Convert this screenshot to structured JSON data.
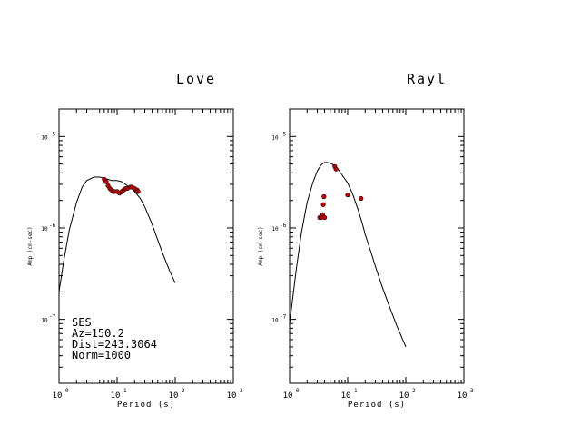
{
  "chart_data": [
    {
      "type": "line",
      "title": "Love",
      "xlabel": "Period (s)",
      "ylabel": "Amp (cm-sec)",
      "x_scale": "log",
      "y_scale": "log",
      "xlim": [
        1,
        1000
      ],
      "ylim": [
        2e-08,
        2e-05
      ],
      "x_ticks": [
        {
          "value": 1,
          "base": "10",
          "exp": "0"
        },
        {
          "value": 10,
          "base": "10",
          "exp": "1"
        },
        {
          "value": 100,
          "base": "10",
          "exp": "2"
        },
        {
          "value": 1000,
          "base": "10",
          "exp": "3"
        }
      ],
      "y_ticks": [
        {
          "value": 1e-05,
          "base": "10",
          "exp": "-5"
        },
        {
          "value": 1e-06,
          "base": "10",
          "exp": "-6"
        },
        {
          "value": 1e-07,
          "base": "10",
          "exp": "-7"
        }
      ],
      "model": {
        "x": [
          1,
          1.2,
          1.5,
          2,
          2.5,
          3,
          4,
          5,
          6,
          7,
          8,
          10,
          12,
          15,
          18,
          20,
          25,
          30,
          40,
          50,
          60,
          70,
          80,
          100
        ],
        "y": [
          2e-07,
          4.3e-07,
          9.5e-07,
          1.9e-06,
          2.8e-06,
          3.3e-06,
          3.6e-06,
          3.6e-06,
          3.5e-06,
          3.4e-06,
          3.3e-06,
          3.3e-06,
          3.2e-06,
          2.9e-06,
          2.7e-06,
          2.5e-06,
          2.1e-06,
          1.7e-06,
          1.1e-06,
          7.4e-07,
          5.4e-07,
          4.2e-07,
          3.4e-07,
          2.5e-07
        ]
      },
      "observed": {
        "x": [
          6,
          6.5,
          7,
          7.5,
          8,
          8.5,
          9,
          10,
          11,
          12,
          13,
          14,
          15,
          17,
          18,
          20,
          22,
          23
        ],
        "y": [
          3.4e-06,
          3.2e-06,
          2.9e-06,
          2.7e-06,
          2.6e-06,
          2.5e-06,
          2.5e-06,
          2.5e-06,
          2.4e-06,
          2.5e-06,
          2.6e-06,
          2.7e-06,
          2.7e-06,
          2.8e-06,
          2.8e-06,
          2.7e-06,
          2.6e-06,
          2.5e-06
        ]
      },
      "annotation": [
        "SES",
        "Az=150.2",
        "Dist=243.3064",
        "Norm=1000"
      ]
    },
    {
      "type": "line",
      "title": "Rayl",
      "xlabel": "Period (s)",
      "ylabel": "Amp (cm-sec)",
      "x_scale": "log",
      "y_scale": "log",
      "xlim": [
        1,
        1000
      ],
      "ylim": [
        2e-08,
        2e-05
      ],
      "x_ticks": [
        {
          "value": 1,
          "base": "10",
          "exp": "0"
        },
        {
          "value": 10,
          "base": "10",
          "exp": "1"
        },
        {
          "value": 100,
          "base": "10",
          "exp": "2"
        },
        {
          "value": 1000,
          "base": "10",
          "exp": "3"
        }
      ],
      "y_ticks": [
        {
          "value": 1e-05,
          "base": "10",
          "exp": "-5"
        },
        {
          "value": 1e-06,
          "base": "10",
          "exp": "-6"
        },
        {
          "value": 1e-07,
          "base": "10",
          "exp": "-7"
        }
      ],
      "model": {
        "x": [
          1,
          1.3,
          1.6,
          2,
          2.5,
          3,
          3.5,
          4,
          4.5,
          5,
          6,
          7,
          8,
          10,
          12,
          15,
          18,
          20,
          25,
          30,
          40,
          50,
          60,
          70,
          80,
          100
        ],
        "y": [
          9e-08,
          3.5e-07,
          9e-07,
          1.9e-06,
          3.1e-06,
          4.2e-06,
          4.9e-06,
          5.2e-06,
          5.2e-06,
          5.1e-06,
          4.8e-06,
          4.3e-06,
          3.8e-06,
          3.1e-06,
          2.4e-06,
          1.6e-06,
          1.1e-06,
          8.5e-07,
          5.5e-07,
          3.8e-07,
          2.2e-07,
          1.5e-07,
          1.1e-07,
          8.5e-08,
          7e-08,
          5e-08
        ]
      },
      "observed": {
        "x": [
          3.3,
          3.5,
          3.7,
          3.8,
          3.9,
          4.0,
          6.0,
          6.3,
          10.0,
          17.0
        ],
        "y": [
          1.3e-06,
          1.3e-06,
          1.4e-06,
          1.8e-06,
          2.2e-06,
          1.3e-06,
          4.7e-06,
          4.4e-06,
          2.3e-06,
          2.1e-06
        ]
      },
      "annotation": []
    }
  ]
}
